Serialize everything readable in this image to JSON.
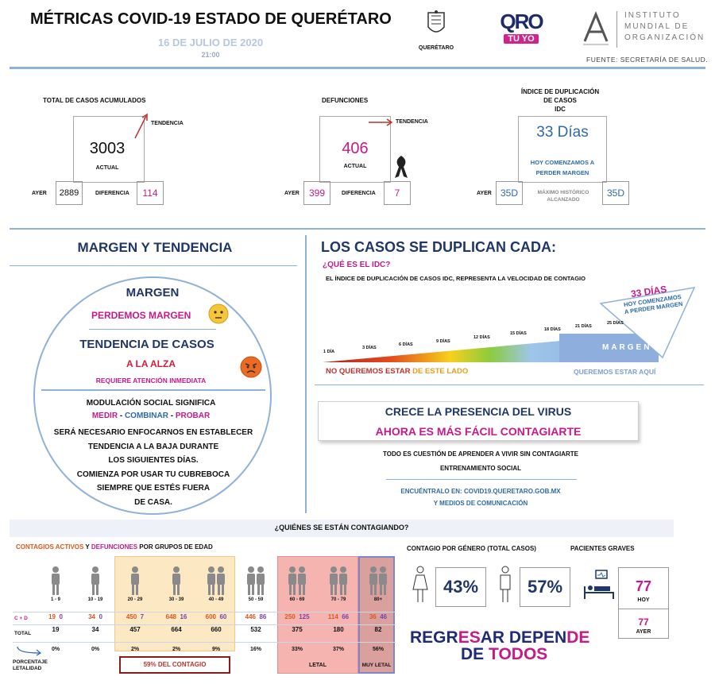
{
  "header": {
    "title": "MÉTRICAS COVID-19 ESTADO DE QUERÉTARO",
    "date": "16 DE JULIO DE 2020",
    "time": "21:00",
    "logo_queretaro": "QUERÉTARO",
    "logo_qro_top": "QRO",
    "logo_qro_bottom": "TÚ YO",
    "institute": [
      "INSTITUTO",
      "MUNDIAL DE",
      "ORGANIZACIÓN"
    ],
    "source": "FUENTE: SECRETARÍA DE SALUD."
  },
  "metrics": {
    "cases": {
      "title": "TOTAL DE CASOS ACUMULADOS",
      "trend": "TENDENCIA",
      "value": "3003",
      "value_label": "ACTUAL",
      "yesterday_label": "AYER",
      "yesterday": "2889",
      "diff_label": "DIFERENCIA",
      "diff": "114"
    },
    "deaths": {
      "title": "DEFUNCIONES",
      "trend": "TENDENCIA",
      "value": "406",
      "value_label": "ACTUAL",
      "yesterday_label": "AYER",
      "yesterday": "399",
      "diff_label": "DIFERENCIA",
      "diff": "7"
    },
    "idc": {
      "title": "ÍNDICE DE DUPLICACIÓN\nDE CASOS\nIDC",
      "value": "33 Días",
      "note": "HOY COMENZAMOS A\nPERDER MARGEN",
      "yesterday_label": "AYER",
      "yesterday": "35D",
      "max_label": "MÁXIMO HISTÓRICO\nALCANZADO",
      "max": "35D"
    }
  },
  "margin": {
    "heading": "MARGEN Y TENDENCIA",
    "margen_title": "MARGEN",
    "margen_value": "PERDEMOS MARGEN",
    "trend_title": "TENDENCIA DE CASOS",
    "trend_value": "A LA ALZA",
    "trend_note": "REQUIERE ATENCIÓN INMEDIATA",
    "modulation_1": "MODULACIÓN SOCIAL SIGNIFICA",
    "medir": "MEDIR",
    "combinar": "COMBINAR",
    "probar": "PROBAR",
    "sep": " - ",
    "body": [
      "SERÁ NECESARIO ENFOCARNOS EN ESTABLECER",
      "TENDENCIA A LA BAJA DURANTE",
      "LOS SIGUIENTES DÍAS.",
      "COMIENZA POR USAR TU CUBREBOCA",
      "SIEMPRE QUE ESTÉS FUERA",
      "DE CASA."
    ]
  },
  "duplication": {
    "heading": "LOS CASOS SE DUPLICAN CADA:",
    "question": "¿QUÉ ES EL IDC?",
    "definition": "EL ÍNDICE DE DUPLICACIÓN DE CASOS IDC, REPRESENTA LA VELOCIDAD DE CONTAGIO",
    "days": [
      "1 DÍA",
      "3 DÍAS",
      "6 DÍAS",
      "9 DÍAS",
      "12 DÍAS",
      "15 DÍAS",
      "18 DÍAS",
      "21 DÍAS",
      "25 DÍAS"
    ],
    "callout_value": "33 DÍAS",
    "callout_note": "HOY COMENZAMOS\nA PERDER MARGEN",
    "bar_label": "MARGEN",
    "left_note_1": "NO QUEREMOS ESTAR ",
    "left_note_2": "DE ESTE LADO",
    "right_note": "QUEREMOS ESTAR AQUÍ"
  },
  "virus": {
    "line1": "CRECE LA PRESENCIA DEL VIRUS",
    "line2": "AHORA ES MÁS FÁCIL CONTAGIARTE",
    "learn": "TODO ES CUESTIÓN DE APRENDER A VIVIR SIN CONTAGIARTE",
    "training": "ENTRENAMIENTO SOCIAL",
    "find": "ENCUÉNTRALO EN: COVID19.QUERETARO.GOB.MX",
    "media": "Y MEDIOS DE COMUNICACIÓN"
  },
  "who": {
    "heading": "¿QUIÉNES SE ESTÁN CONTAGIANDO?",
    "sub_active": "CONTAGIOS ACTIVOS",
    "sub_and": " Y ",
    "sub_deaths": "DEFUNCIONES",
    "sub_rest": " POR GRUPOS DE EDAD",
    "row_cd": "C + D",
    "row_total": "TOTAL",
    "row_pct": "PORCENTAJE\nLETALIDAD",
    "groups": [
      {
        "age": "1 - 9",
        "c": "19",
        "d": "0",
        "total": "19",
        "pct": "0%"
      },
      {
        "age": "10 - 19",
        "c": "34",
        "d": "0",
        "total": "34",
        "pct": "0%"
      },
      {
        "age": "20 - 29",
        "c": "450",
        "d": "7",
        "total": "457",
        "pct": "2%"
      },
      {
        "age": "30 - 39",
        "c": "648",
        "d": "16",
        "total": "664",
        "pct": "2%"
      },
      {
        "age": "40 - 49",
        "c": "600",
        "d": "60",
        "total": "660",
        "pct": "9%"
      },
      {
        "age": "50 - 59",
        "c": "446",
        "d": "86",
        "total": "532",
        "pct": "16%"
      },
      {
        "age": "60 - 69",
        "c": "250",
        "d": "125",
        "total": "375",
        "pct": "33%"
      },
      {
        "age": "70 - 79",
        "c": "114",
        "d": "66",
        "total": "180",
        "pct": "37%"
      },
      {
        "age": "80+",
        "c": "36",
        "d": "46",
        "total": "82",
        "pct": "56%"
      }
    ],
    "contagion_pct": "59%",
    "contagion_label": "DEL CONTAGIO",
    "letal": "LETAL",
    "muy_letal": "MUY LETAL"
  },
  "gender": {
    "title": "CONTAGIO POR GÉNERO (TOTAL CASOS)",
    "female": "43%",
    "male": "57%"
  },
  "severe": {
    "title": "PACIENTES GRAVES",
    "today": "77",
    "today_label": "HOY",
    "yesterday": "77",
    "yesterday_label": "AYER"
  },
  "slogan": {
    "p1": "REGR",
    "p2": "ES",
    "p3": "AR DEPEN",
    "p4": "DE",
    "p5": "DE ",
    "p6": "TODOS"
  }
}
